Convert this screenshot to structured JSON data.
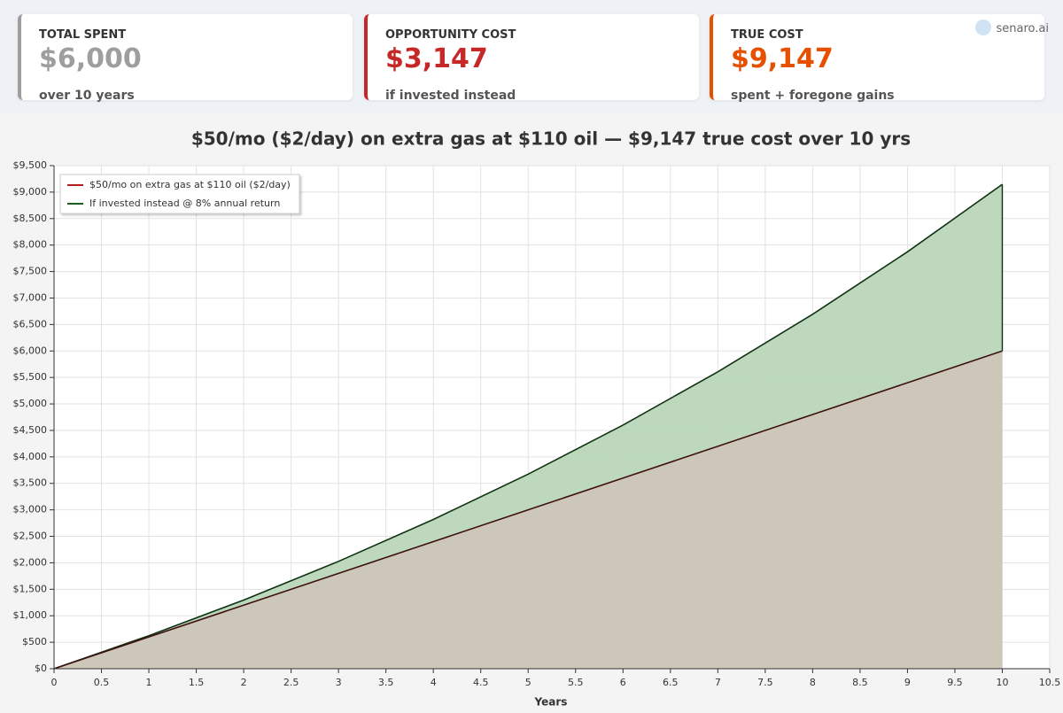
{
  "cards": [
    {
      "label": "TOTAL SPENT",
      "value": "$6,000",
      "sub": "over 10 years",
      "color": "#9e9e9e"
    },
    {
      "label": "OPPORTUNITY COST",
      "value": "$3,147",
      "sub": "if invested instead",
      "color": "#c62828"
    },
    {
      "label": "TRUE COST",
      "value": "$9,147",
      "sub": "spent + foregone gains",
      "color": "#e65100"
    }
  ],
  "brand": "senaro.ai",
  "chart_data": {
    "type": "area",
    "title": "$50/mo ($2/day) on extra gas at $110 oil — $9,147 true cost over 10 yrs",
    "x_label": "Years",
    "x": [
      0,
      1,
      2,
      3,
      4,
      5,
      6,
      7,
      8,
      9,
      10
    ],
    "series": [
      {
        "name": "$50/mo on extra gas at $110 oil ($2/day)",
        "color": "#b71c1c",
        "fill": "#ccc6b8",
        "values": [
          0,
          600,
          1200,
          1800,
          2400,
          3000,
          3600,
          4200,
          4800,
          5400,
          6000
        ]
      },
      {
        "name": "If invested instead @ 8% annual return",
        "color": "#1b5e20",
        "fill": "#b9d6b9",
        "values": [
          0,
          623,
          1297,
          2027,
          2818,
          3674,
          4601,
          5606,
          6693,
          7872,
          9147
        ]
      }
    ],
    "xlim": [
      0,
      10.5
    ],
    "xticks": [
      0,
      0.5,
      1,
      1.5,
      2,
      2.5,
      3,
      3.5,
      4,
      4.5,
      5,
      5.5,
      6,
      6.5,
      7,
      7.5,
      8,
      8.5,
      9,
      9.5,
      10,
      10.5
    ],
    "ylim": [
      0,
      9500
    ],
    "yticks": [
      {
        "value": 0,
        "label": "$0"
      },
      {
        "value": 500,
        "label": "$500"
      },
      {
        "value": 1000,
        "label": "$1,000"
      },
      {
        "value": 1500,
        "label": "$1,500"
      },
      {
        "value": 2000,
        "label": "$2,000"
      },
      {
        "value": 2500,
        "label": "$2,500"
      },
      {
        "value": 3000,
        "label": "$3,000"
      },
      {
        "value": 3500,
        "label": "$3,500"
      },
      {
        "value": 4000,
        "label": "$4,000"
      },
      {
        "value": 4500,
        "label": "$4,500"
      },
      {
        "value": 5000,
        "label": "$5,000"
      },
      {
        "value": 5500,
        "label": "$5,500"
      },
      {
        "value": 6000,
        "label": "$6,000"
      },
      {
        "value": 6500,
        "label": "$6,500"
      },
      {
        "value": 7000,
        "label": "$7,000"
      },
      {
        "value": 7500,
        "label": "$7,500"
      },
      {
        "value": 8000,
        "label": "$8,000"
      },
      {
        "value": 8500,
        "label": "$8,500"
      },
      {
        "value": 9000,
        "label": "$9,000"
      },
      {
        "value": 9500,
        "label": "$9,500"
      }
    ],
    "grid": true,
    "legend": "top-left"
  }
}
